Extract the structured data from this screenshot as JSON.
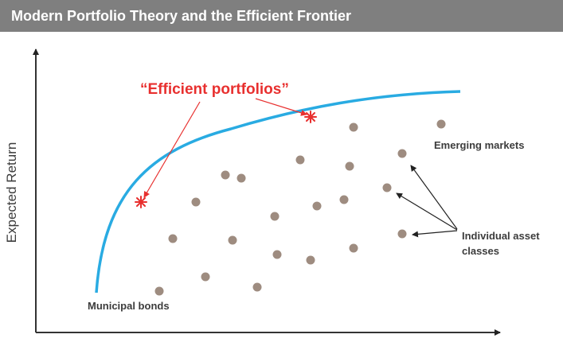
{
  "header": {
    "title": "Modern Portfolio Theory and the Efficient Frontier"
  },
  "diagram": {
    "y_axis_label": "Expected Return",
    "frontier_label": "“Efficient portfolios”",
    "label_emerging": "Emerging markets",
    "label_individual_line1": "Individual asset",
    "label_individual_line2": "classes",
    "label_municipal": "Municipal bonds",
    "colors": {
      "header_bg": "#7f7f7f",
      "frontier_curve": "#29abe2",
      "efficient_marker": "#e8302f",
      "asset_dot": "#9e8c80",
      "axis": "#333333",
      "text": "#3c3c3c"
    }
  }
}
